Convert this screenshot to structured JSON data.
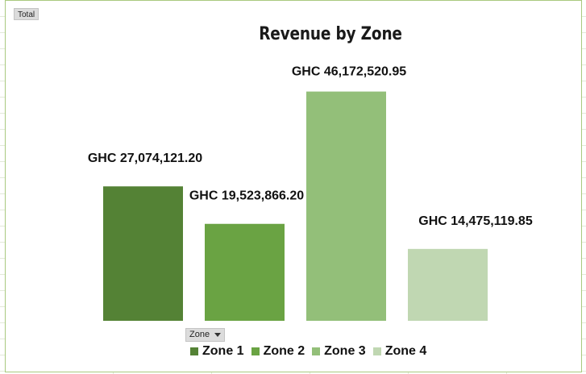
{
  "pivot": {
    "value_button_label": "Total",
    "field_button_label": "Zone"
  },
  "chart_data": {
    "type": "bar",
    "title": "Revenue by Zone",
    "categories": [
      "Zone 1",
      "Zone 2",
      "Zone 3",
      "Zone 4"
    ],
    "values": [
      27074121.2,
      19523866.2,
      46172520.95,
      14475119.85
    ],
    "data_labels": [
      "GHC 27,074,121.20",
      "GHC 19,523,866.20",
      "GHC 46,172,520.95",
      "GHC 14,475,119.85"
    ],
    "colors": [
      "#548235",
      "#6aa343",
      "#93bf79",
      "#c0d7b2"
    ],
    "legend": {
      "placement": "bottom",
      "entries": [
        "Zone 1",
        "Zone 2",
        "Zone 3",
        "Zone 4"
      ]
    },
    "xlabel": "",
    "ylabel": "",
    "ylim": [
      0,
      50000000
    ],
    "grid": false,
    "axes_visible": false
  }
}
